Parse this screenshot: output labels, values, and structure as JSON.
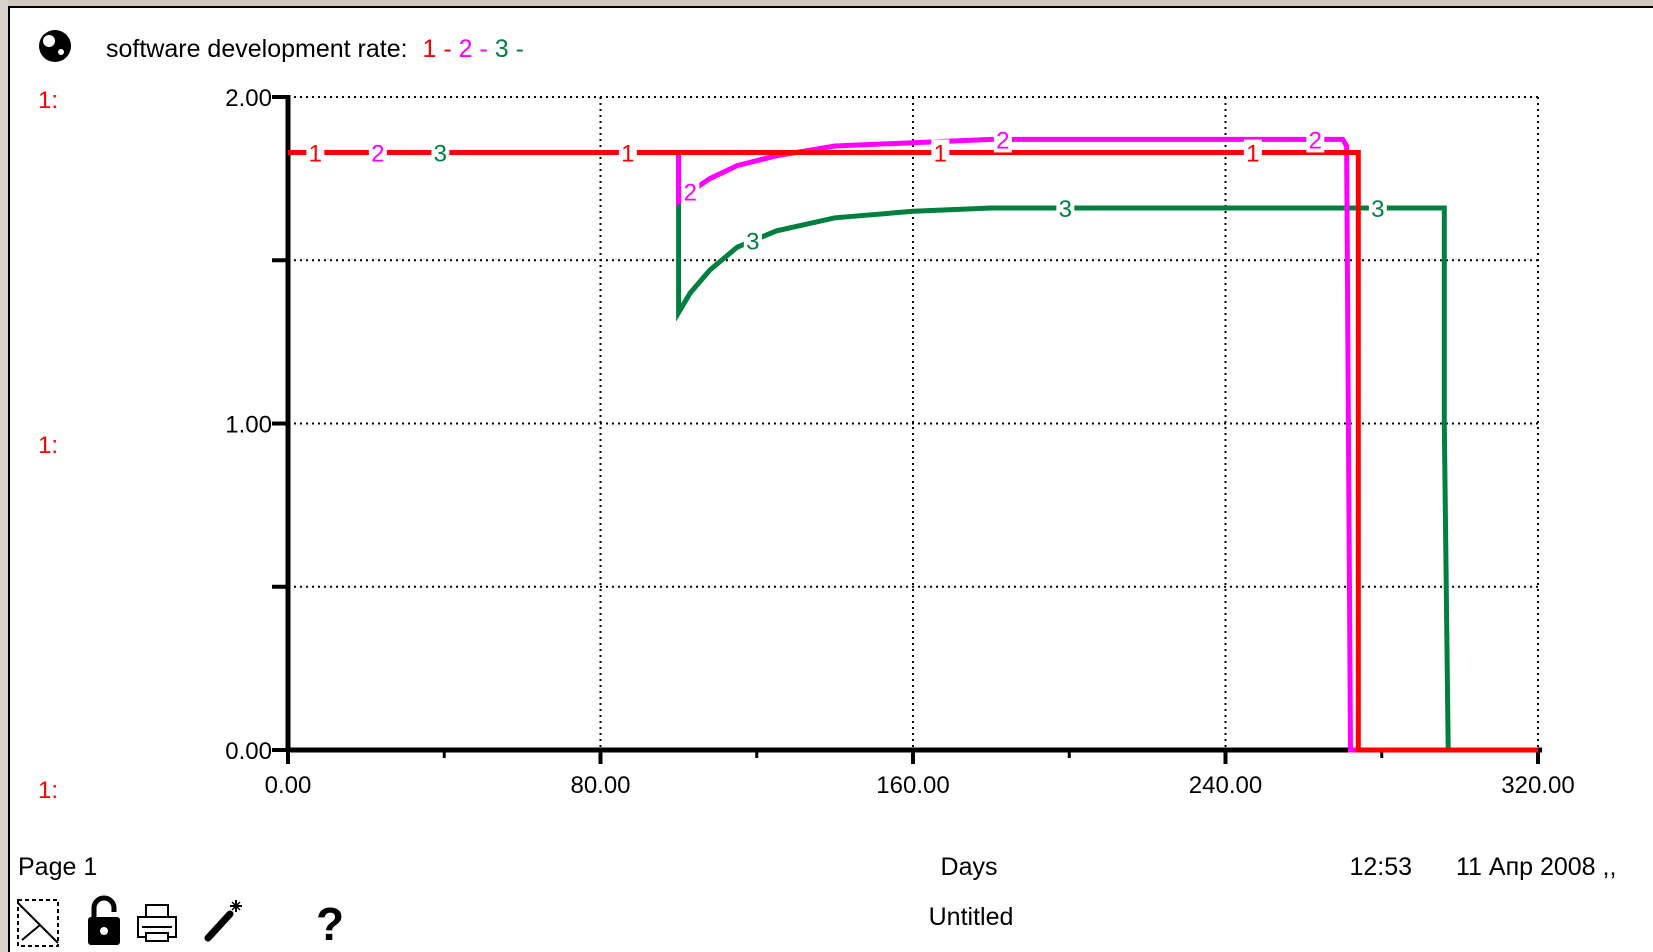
{
  "legend": {
    "title": "software development rate:",
    "items": [
      {
        "label": "1",
        "sep": " - "
      },
      {
        "label": "2",
        "sep": " - "
      },
      {
        "label": "3",
        "sep": " -"
      }
    ]
  },
  "y_axis_tags": [
    "1:",
    "1:",
    "1:"
  ],
  "footer": {
    "page": "Page 1",
    "xlabel": "Days",
    "time": "12:53",
    "date": "11 Апр 2008 ,,",
    "doc_title": "Untitled",
    "help_symbol": "?"
  },
  "colors": {
    "series1": "#ff0000",
    "series2": "#ff00ff",
    "series3": "#008040"
  },
  "icons": [
    "globe-icon",
    "pencil-crossed-icon",
    "lock-icon",
    "printer-icon",
    "magic-wand-icon",
    "help-icon"
  ],
  "chart_data": {
    "type": "line",
    "xlabel": "Days",
    "ylabel": "",
    "xlim": [
      0,
      320
    ],
    "ylim": [
      0,
      2
    ],
    "x_ticks": [
      0,
      80,
      160,
      240,
      320
    ],
    "x_tick_labels": [
      "0.00",
      "80.00",
      "160.00",
      "240.00",
      "320.00"
    ],
    "y_ticks": [
      0,
      1,
      2
    ],
    "y_tick_labels": [
      "0.00",
      "1.00",
      "2.00"
    ],
    "grid": true,
    "series": [
      {
        "name": "1",
        "x": [
          0,
          100,
          135,
          160,
          200,
          240,
          273,
          274,
          274,
          320
        ],
        "y": [
          1.83,
          1.83,
          1.83,
          1.83,
          1.83,
          1.83,
          1.83,
          1.83,
          0,
          0
        ]
      },
      {
        "name": "2",
        "x": [
          0,
          100,
          100,
          103,
          108,
          115,
          125,
          140,
          160,
          180,
          200,
          240,
          270,
          271,
          272,
          320
        ],
        "y": [
          1.83,
          1.83,
          1.68,
          1.71,
          1.75,
          1.79,
          1.82,
          1.85,
          1.86,
          1.87,
          1.87,
          1.87,
          1.87,
          1.85,
          0,
          0
        ]
      },
      {
        "name": "3",
        "x": [
          0,
          100,
          100,
          103,
          108,
          115,
          125,
          140,
          160,
          180,
          200,
          240,
          270,
          296,
          296,
          297,
          320
        ],
        "y": [
          1.83,
          1.83,
          1.34,
          1.4,
          1.47,
          1.54,
          1.59,
          1.63,
          1.65,
          1.66,
          1.66,
          1.66,
          1.66,
          1.66,
          1.0,
          0,
          0
        ]
      }
    ],
    "series_markers": [
      {
        "series": "1",
        "x": [
          7,
          87,
          167,
          247
        ]
      },
      {
        "series": "2",
        "x": [
          23,
          103,
          183,
          263
        ]
      },
      {
        "series": "3",
        "x": [
          39,
          119,
          199,
          279
        ]
      }
    ]
  }
}
